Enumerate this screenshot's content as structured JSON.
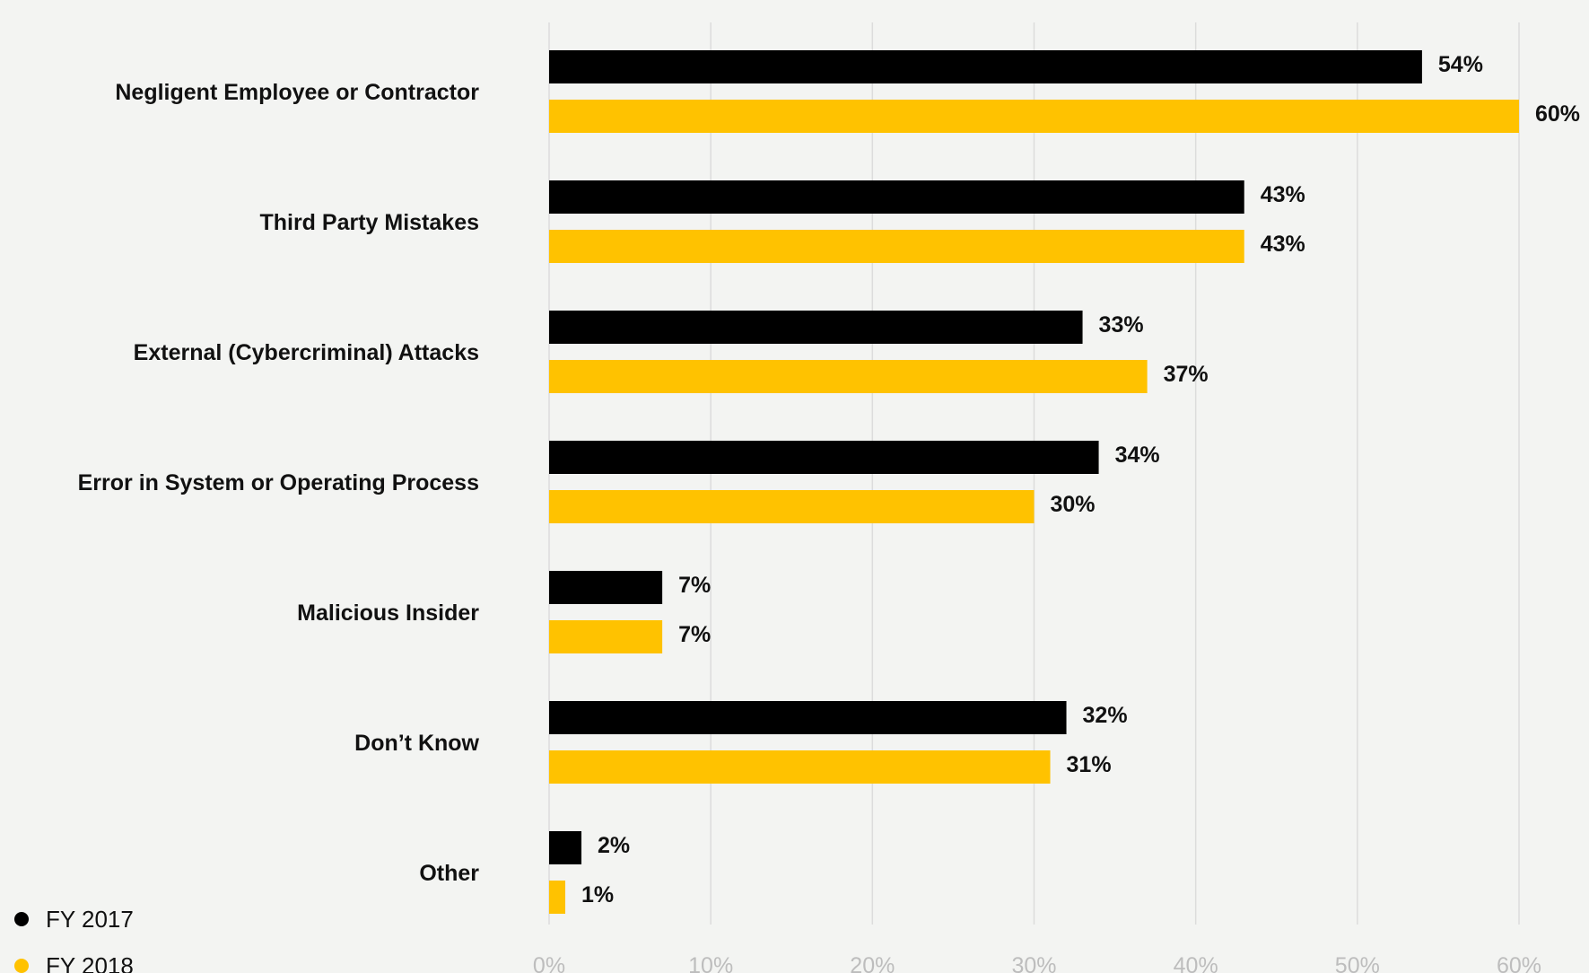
{
  "chart_data": {
    "type": "bar",
    "orientation": "horizontal",
    "categories": [
      "Negligent Employee or Contractor",
      "Third Party Mistakes",
      "External (Cybercriminal) Attacks",
      "Error in System or Operating Process",
      "Malicious Insider",
      "Don’t Know",
      "Other"
    ],
    "series": [
      {
        "name": "FY 2017",
        "color": "#000000",
        "values": [
          54,
          43,
          33,
          34,
          7,
          32,
          2
        ]
      },
      {
        "name": "FY 2018",
        "color": "#ffc200",
        "values": [
          60,
          43,
          37,
          30,
          7,
          31,
          1
        ]
      }
    ],
    "value_labels": [
      [
        "54%",
        "43%",
        "33%",
        "34%",
        "7%",
        "32%",
        "2%"
      ],
      [
        "60%",
        "43%",
        "37%",
        "30%",
        "7%",
        "31%",
        "1%"
      ]
    ],
    "x_ticks": [
      0,
      10,
      20,
      30,
      40,
      50,
      60
    ],
    "x_tick_labels": [
      "0%",
      "10%",
      "20%",
      "30%",
      "40%",
      "50%",
      "60%"
    ],
    "xlim": [
      0,
      60
    ],
    "title": "",
    "xlabel": "",
    "ylabel": "",
    "grid": "vertical",
    "legend_position": "bottom-left"
  }
}
